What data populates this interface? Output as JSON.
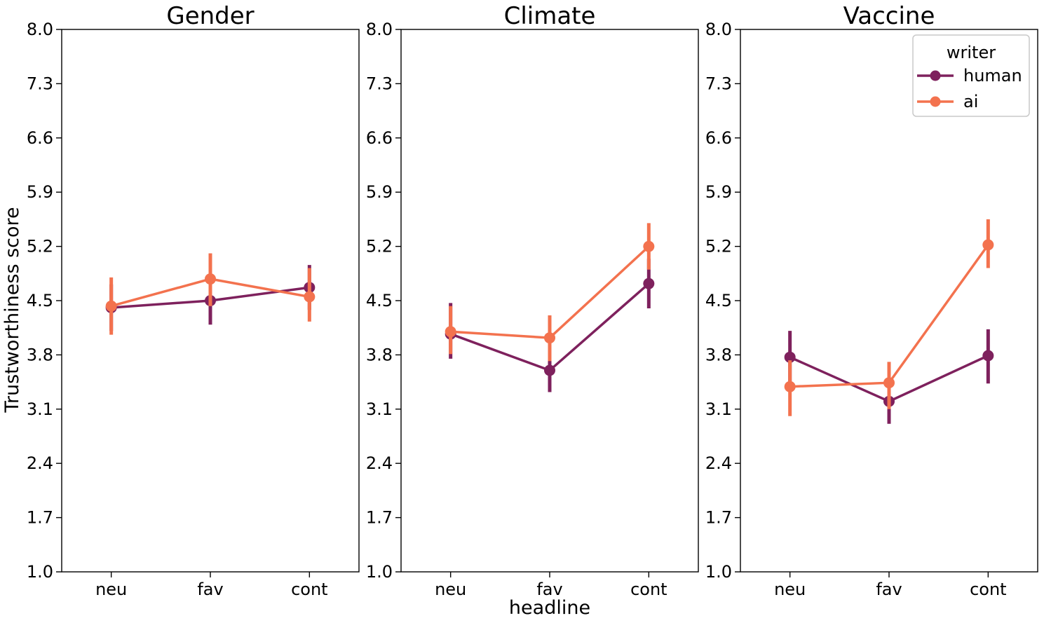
{
  "figure": {
    "ylabel": "Trustworthiness score",
    "xlabel": "headline",
    "categories": [
      "neu",
      "fav",
      "cont"
    ],
    "ytick_labels": [
      "8.0",
      "7.3",
      "6.6",
      "5.9",
      "5.2",
      "4.5",
      "3.8",
      "3.1",
      "2.4",
      "1.7",
      "1.0"
    ],
    "ylim": [
      1.0,
      8.0
    ],
    "colors": {
      "human": "#7e215d",
      "ai": "#f3724e",
      "text": "#000000",
      "spine": "#000000",
      "legend_border": "#c9c9c9"
    },
    "legend": {
      "title": "writer",
      "position": "top-right-of-third-panel",
      "entries": [
        {
          "label": "human",
          "color": "#7e215d"
        },
        {
          "label": "ai",
          "color": "#f3724e"
        }
      ]
    }
  },
  "chart_data": [
    {
      "type": "line",
      "title": "Gender",
      "xlabel": "headline",
      "ylabel": "Trustworthiness score",
      "ylim": [
        1.0,
        8.0
      ],
      "categories": [
        "neu",
        "fav",
        "cont"
      ],
      "series": [
        {
          "name": "human",
          "color": "#7e215d",
          "values": [
            4.41,
            4.5,
            4.67
          ],
          "ci_low": [
            4.11,
            4.19,
            4.38
          ],
          "ci_high": [
            4.71,
            4.62,
            4.96
          ]
        },
        {
          "name": "ai",
          "color": "#f3724e",
          "values": [
            4.43,
            4.78,
            4.55
          ],
          "ci_low": [
            4.06,
            4.43,
            4.23
          ],
          "ci_high": [
            4.8,
            5.11,
            4.92
          ]
        }
      ]
    },
    {
      "type": "line",
      "title": "Climate",
      "xlabel": "headline",
      "ylabel": "Trustworthiness score",
      "ylim": [
        1.0,
        8.0
      ],
      "categories": [
        "neu",
        "fav",
        "cont"
      ],
      "series": [
        {
          "name": "human",
          "color": "#7e215d",
          "values": [
            4.07,
            3.6,
            4.72
          ],
          "ci_low": [
            3.75,
            3.32,
            4.4
          ],
          "ci_high": [
            4.47,
            3.88,
            5.04
          ]
        },
        {
          "name": "ai",
          "color": "#f3724e",
          "values": [
            4.1,
            4.02,
            5.2
          ],
          "ci_low": [
            3.81,
            3.72,
            4.9
          ],
          "ci_high": [
            4.43,
            4.31,
            5.5
          ]
        }
      ]
    },
    {
      "type": "line",
      "title": "Vaccine",
      "xlabel": "headline",
      "ylabel": "Trustworthiness score",
      "ylim": [
        1.0,
        8.0
      ],
      "categories": [
        "neu",
        "fav",
        "cont"
      ],
      "series": [
        {
          "name": "human",
          "color": "#7e215d",
          "values": [
            3.77,
            3.2,
            3.79
          ],
          "ci_low": [
            3.43,
            2.91,
            3.43
          ],
          "ci_high": [
            4.11,
            3.49,
            4.13
          ]
        },
        {
          "name": "ai",
          "color": "#f3724e",
          "values": [
            3.39,
            3.44,
            5.22
          ],
          "ci_low": [
            3.01,
            3.1,
            4.92
          ],
          "ci_high": [
            3.73,
            3.71,
            5.55
          ]
        }
      ]
    }
  ]
}
